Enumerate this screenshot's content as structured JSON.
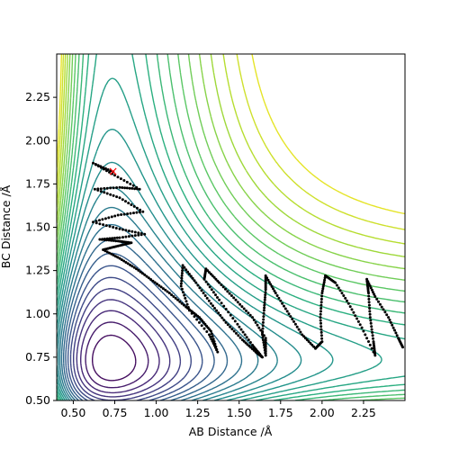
{
  "chart_data": {
    "type": "line",
    "title": "",
    "xlabel": "AB Distance /Å",
    "ylabel": "BC Distance /Å",
    "xlim": [
      0.4,
      2.5
    ],
    "ylim": [
      0.5,
      2.5
    ],
    "x_ticks": [
      0.5,
      0.75,
      1.0,
      1.25,
      1.5,
      1.75,
      2.0,
      2.25
    ],
    "x_tick_labels": [
      "0.50",
      "0.75",
      "1.00",
      "1.25",
      "1.50",
      "1.75",
      "2.00",
      "2.25"
    ],
    "y_ticks": [
      0.5,
      0.75,
      1.0,
      1.25,
      1.5,
      1.75,
      2.0,
      2.25
    ],
    "y_tick_labels": [
      "0.50",
      "0.75",
      "1.00",
      "1.25",
      "1.50",
      "1.75",
      "2.00",
      "2.25"
    ],
    "grid": false,
    "contour_plot": {
      "description_levels": 26,
      "colormap": [
        "#440154",
        "#472d7b",
        "#3b528b",
        "#2c728e",
        "#21918c",
        "#28ae80",
        "#5ec962",
        "#addc30",
        "#fde725"
      ]
    },
    "start_marker": {
      "x": 0.74,
      "y": 1.82,
      "symbol": "×",
      "color": "#ff0000"
    },
    "trajectory": {
      "color": "#000000",
      "points": [
        [
          0.74,
          1.82
        ],
        [
          0.62,
          1.87
        ],
        [
          0.75,
          1.8
        ],
        [
          0.9,
          1.72
        ],
        [
          0.78,
          1.73
        ],
        [
          0.63,
          1.72
        ],
        [
          0.78,
          1.67
        ],
        [
          0.92,
          1.59
        ],
        [
          0.77,
          1.57
        ],
        [
          0.62,
          1.53
        ],
        [
          0.78,
          1.49
        ],
        [
          0.93,
          1.46
        ],
        [
          0.78,
          1.44
        ],
        [
          0.66,
          1.43
        ],
        [
          0.77,
          1.42
        ],
        [
          0.85,
          1.41
        ],
        [
          0.76,
          1.39
        ],
        [
          0.68,
          1.37
        ],
        [
          0.78,
          1.32
        ],
        [
          0.88,
          1.26
        ],
        [
          0.98,
          1.19
        ],
        [
          1.08,
          1.12
        ],
        [
          1.18,
          1.04
        ],
        [
          1.26,
          0.98
        ],
        [
          1.33,
          0.9
        ],
        [
          1.37,
          0.78
        ],
        [
          1.32,
          0.88
        ],
        [
          1.2,
          1.02
        ],
        [
          1.15,
          1.16
        ],
        [
          1.16,
          1.28
        ],
        [
          1.24,
          1.18
        ],
        [
          1.33,
          1.06
        ],
        [
          1.42,
          0.95
        ],
        [
          1.52,
          0.85
        ],
        [
          1.6,
          0.78
        ],
        [
          1.64,
          0.75
        ],
        [
          1.58,
          0.82
        ],
        [
          1.49,
          0.94
        ],
        [
          1.38,
          1.08
        ],
        [
          1.29,
          1.2
        ],
        [
          1.3,
          1.26
        ],
        [
          1.38,
          1.18
        ],
        [
          1.48,
          1.08
        ],
        [
          1.58,
          0.98
        ],
        [
          1.66,
          0.86
        ],
        [
          1.66,
          0.76
        ],
        [
          1.64,
          0.88
        ],
        [
          1.65,
          1.02
        ],
        [
          1.66,
          1.14
        ],
        [
          1.66,
          1.22
        ],
        [
          1.72,
          1.12
        ],
        [
          1.8,
          1.0
        ],
        [
          1.88,
          0.88
        ],
        [
          1.96,
          0.8
        ],
        [
          2.0,
          0.84
        ],
        [
          1.99,
          0.98
        ],
        [
          2.0,
          1.12
        ],
        [
          2.02,
          1.22
        ],
        [
          2.08,
          1.18
        ],
        [
          2.16,
          1.06
        ],
        [
          2.24,
          0.92
        ],
        [
          2.32,
          0.76
        ],
        [
          2.31,
          0.84
        ],
        [
          2.29,
          0.98
        ],
        [
          2.28,
          1.12
        ],
        [
          2.27,
          1.2
        ],
        [
          2.32,
          1.1
        ],
        [
          2.4,
          0.98
        ],
        [
          2.46,
          0.86
        ],
        [
          2.49,
          0.8
        ]
      ]
    }
  }
}
